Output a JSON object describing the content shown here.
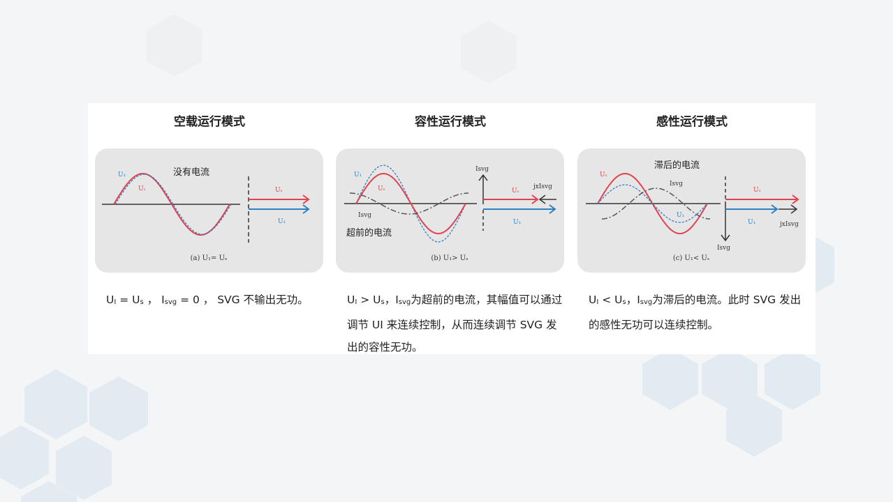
{
  "colors": {
    "us": "#e0434f",
    "ui": "#2f7fc1",
    "isvg": "#444444",
    "panel": "#e6e6e6",
    "hex": "#dbe9f2"
  },
  "modes": [
    {
      "title": "空载运行模式",
      "note": "没有电流",
      "caption": "(a)  U₁= Uₛ",
      "desc": [
        "U",
        "I",
        " = U",
        "s",
        " ，  I",
        "svg",
        " = 0  ，  SVG 不输出无功。"
      ],
      "labels": {
        "ui": "U₁",
        "us": "Uₛ"
      }
    },
    {
      "title": "容性运行模式",
      "note": "超前的电流",
      "caption": "(b)  U₁> Uₛ",
      "desc": [
        "U",
        "I",
        " > U",
        "s",
        "，I",
        "svg",
        "为超前的电流，其幅值可以通过调节 UI 来连续控制，从而连续调节 SVG 发出的容性无功。"
      ],
      "labels": {
        "ui": "U₁",
        "us": "Uₛ",
        "isvg": "Isvg",
        "jx": "jxIsvg"
      }
    },
    {
      "title": "感性运行模式",
      "note": "滞后的电流",
      "caption": "(c)  U₁< Uₛ",
      "desc": [
        "U",
        "I",
        " <   U",
        "s",
        "，I",
        "svg",
        "为滞后的电流。此时 SVG 发出的感性无功可以连续控制。"
      ],
      "labels": {
        "ui": "U₁",
        "us": "Uₛ",
        "isvg": "Isvg",
        "jx": "jxIsvg"
      }
    }
  ]
}
